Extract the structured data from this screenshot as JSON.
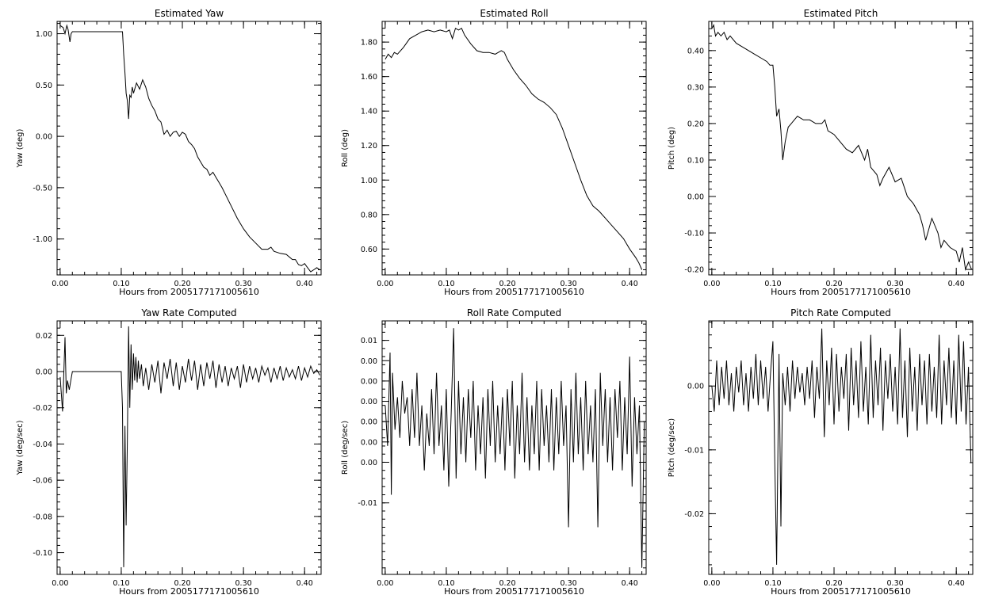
{
  "chart_data": [
    {
      "type": "line",
      "title": "Estimated Yaw",
      "xlabel": "Hours from 2005177171005610",
      "ylabel": "Yaw (deg)",
      "xlim": [
        -0.005,
        0.427
      ],
      "ylim": [
        -1.35,
        1.12
      ],
      "xticks": [
        0.0,
        0.1,
        0.2,
        0.3,
        0.4
      ],
      "xtick_labels": [
        "0.00",
        "0.10",
        "0.20",
        "0.30",
        "0.40"
      ],
      "yticks": [
        -1.0,
        -0.5,
        0.0,
        0.5,
        1.0
      ],
      "ytick_labels": [
        "-1.00",
        "-0.50",
        "0.00",
        "0.50",
        "1.00"
      ],
      "x": [
        0.0,
        0.005,
        0.008,
        0.011,
        0.013,
        0.016,
        0.018,
        0.02,
        0.022,
        0.05,
        0.08,
        0.102,
        0.104,
        0.106,
        0.108,
        0.11,
        0.112,
        0.114,
        0.116,
        0.118,
        0.12,
        0.125,
        0.13,
        0.135,
        0.14,
        0.145,
        0.15,
        0.155,
        0.16,
        0.165,
        0.17,
        0.175,
        0.18,
        0.185,
        0.19,
        0.195,
        0.2,
        0.205,
        0.21,
        0.215,
        0.22,
        0.225,
        0.23,
        0.235,
        0.24,
        0.245,
        0.25,
        0.255,
        0.26,
        0.265,
        0.27,
        0.28,
        0.29,
        0.3,
        0.31,
        0.32,
        0.33,
        0.34,
        0.345,
        0.35,
        0.36,
        0.37,
        0.38,
        0.385,
        0.39,
        0.395,
        0.4,
        0.405,
        0.41,
        0.415,
        0.42,
        0.425
      ],
      "y": [
        1.08,
        1.06,
        1.0,
        1.08,
        1.04,
        0.92,
        1.0,
        1.02,
        1.02,
        1.02,
        1.02,
        1.02,
        0.8,
        0.62,
        0.42,
        0.35,
        0.17,
        0.4,
        0.38,
        0.48,
        0.42,
        0.52,
        0.46,
        0.55,
        0.48,
        0.37,
        0.3,
        0.25,
        0.17,
        0.14,
        0.02,
        0.06,
        0.0,
        0.04,
        0.05,
        0.0,
        0.04,
        0.02,
        -0.05,
        -0.08,
        -0.12,
        -0.2,
        -0.25,
        -0.3,
        -0.32,
        -0.38,
        -0.35,
        -0.4,
        -0.45,
        -0.5,
        -0.56,
        -0.68,
        -0.8,
        -0.9,
        -0.98,
        -1.04,
        -1.1,
        -1.1,
        -1.08,
        -1.12,
        -1.14,
        -1.15,
        -1.2,
        -1.2,
        -1.25,
        -1.26,
        -1.24,
        -1.28,
        -1.32,
        -1.3,
        -1.28,
        -1.3
      ]
    },
    {
      "type": "line",
      "title": "Estimated Roll",
      "xlabel": "Hours from 2005177171005610",
      "ylabel": "Roll (deg)",
      "xlim": [
        -0.005,
        0.427
      ],
      "ylim": [
        0.45,
        1.92
      ],
      "xticks": [
        0.0,
        0.1,
        0.2,
        0.3,
        0.4
      ],
      "xtick_labels": [
        "0.00",
        "0.10",
        "0.20",
        "0.30",
        "0.40"
      ],
      "yticks": [
        0.6,
        0.8,
        1.0,
        1.2,
        1.4,
        1.6,
        1.8
      ],
      "ytick_labels": [
        "0.60",
        "0.80",
        "1.00",
        "1.20",
        "1.40",
        "1.60",
        "1.80"
      ],
      "x": [
        0.0,
        0.005,
        0.01,
        0.015,
        0.02,
        0.03,
        0.04,
        0.05,
        0.06,
        0.07,
        0.08,
        0.09,
        0.1,
        0.105,
        0.11,
        0.115,
        0.12,
        0.125,
        0.13,
        0.14,
        0.15,
        0.16,
        0.17,
        0.18,
        0.19,
        0.195,
        0.2,
        0.21,
        0.22,
        0.23,
        0.24,
        0.25,
        0.26,
        0.27,
        0.28,
        0.29,
        0.3,
        0.31,
        0.32,
        0.33,
        0.34,
        0.35,
        0.36,
        0.37,
        0.38,
        0.39,
        0.4,
        0.41,
        0.415,
        0.42
      ],
      "y": [
        1.7,
        1.73,
        1.71,
        1.74,
        1.73,
        1.77,
        1.82,
        1.84,
        1.86,
        1.87,
        1.86,
        1.87,
        1.86,
        1.87,
        1.82,
        1.88,
        1.87,
        1.88,
        1.84,
        1.79,
        1.75,
        1.74,
        1.74,
        1.73,
        1.75,
        1.74,
        1.7,
        1.64,
        1.59,
        1.55,
        1.5,
        1.47,
        1.45,
        1.42,
        1.38,
        1.3,
        1.2,
        1.1,
        1.0,
        0.91,
        0.85,
        0.82,
        0.78,
        0.74,
        0.7,
        0.66,
        0.6,
        0.55,
        0.52,
        0.48
      ]
    },
    {
      "type": "line",
      "title": "Estimated Pitch",
      "xlabel": "Hours from 2005177171005610",
      "ylabel": "Pitch (deg)",
      "xlim": [
        -0.005,
        0.427
      ],
      "ylim": [
        -0.215,
        0.48
      ],
      "xticks": [
        0.0,
        0.1,
        0.2,
        0.3,
        0.4
      ],
      "xtick_labels": [
        "0.00",
        "0.10",
        "0.20",
        "0.30",
        "0.40"
      ],
      "yticks": [
        -0.2,
        -0.1,
        0.0,
        0.1,
        0.2,
        0.3,
        0.4
      ],
      "ytick_labels": [
        "-0.20",
        "-0.10",
        "0.00",
        "0.10",
        "0.20",
        "0.30",
        "0.40"
      ],
      "x": [
        0.0,
        0.003,
        0.006,
        0.01,
        0.015,
        0.02,
        0.025,
        0.03,
        0.04,
        0.05,
        0.06,
        0.07,
        0.08,
        0.09,
        0.095,
        0.1,
        0.103,
        0.106,
        0.11,
        0.113,
        0.116,
        0.12,
        0.125,
        0.13,
        0.14,
        0.15,
        0.16,
        0.17,
        0.18,
        0.185,
        0.19,
        0.2,
        0.21,
        0.22,
        0.23,
        0.24,
        0.25,
        0.255,
        0.26,
        0.27,
        0.275,
        0.28,
        0.29,
        0.3,
        0.31,
        0.32,
        0.33,
        0.34,
        0.345,
        0.35,
        0.36,
        0.37,
        0.375,
        0.38,
        0.39,
        0.4,
        0.405,
        0.41,
        0.415,
        0.42,
        0.425
      ],
      "y": [
        0.46,
        0.47,
        0.44,
        0.45,
        0.44,
        0.45,
        0.43,
        0.44,
        0.42,
        0.41,
        0.4,
        0.39,
        0.38,
        0.37,
        0.36,
        0.36,
        0.3,
        0.22,
        0.24,
        0.18,
        0.1,
        0.15,
        0.19,
        0.2,
        0.22,
        0.21,
        0.21,
        0.2,
        0.2,
        0.21,
        0.18,
        0.17,
        0.15,
        0.13,
        0.12,
        0.14,
        0.1,
        0.13,
        0.08,
        0.06,
        0.03,
        0.05,
        0.08,
        0.04,
        0.05,
        0.0,
        -0.02,
        -0.05,
        -0.08,
        -0.12,
        -0.06,
        -0.1,
        -0.14,
        -0.12,
        -0.14,
        -0.15,
        -0.18,
        -0.14,
        -0.2,
        -0.18,
        -0.2
      ]
    },
    {
      "type": "line",
      "title": "Yaw Rate Computed",
      "xlabel": "Hours from 2005177171005610",
      "ylabel": "Yaw (deg/sec)",
      "xlim": [
        -0.005,
        0.427
      ],
      "ylim": [
        -0.112,
        0.028
      ],
      "xticks": [
        0.0,
        0.1,
        0.2,
        0.3,
        0.4
      ],
      "xtick_labels": [
        "0.00",
        "0.10",
        "0.20",
        "0.30",
        "0.40"
      ],
      "yticks": [
        -0.1,
        -0.08,
        -0.06,
        -0.04,
        -0.02,
        0.0,
        0.02
      ],
      "ytick_labels": [
        "-0.10",
        "-0.08",
        "-0.06",
        "-0.04",
        "-0.02",
        "0.00",
        "0.02"
      ],
      "x": [
        0.0,
        0.004,
        0.008,
        0.01,
        0.012,
        0.015,
        0.018,
        0.02,
        0.1,
        0.102,
        0.104,
        0.106,
        0.108,
        0.11,
        0.112,
        0.114,
        0.116,
        0.118,
        0.12,
        0.122,
        0.124,
        0.126,
        0.128,
        0.13,
        0.133,
        0.136,
        0.14,
        0.145,
        0.15,
        0.155,
        0.16,
        0.165,
        0.17,
        0.175,
        0.18,
        0.185,
        0.19,
        0.195,
        0.2,
        0.205,
        0.21,
        0.215,
        0.22,
        0.225,
        0.23,
        0.235,
        0.24,
        0.245,
        0.25,
        0.255,
        0.26,
        0.265,
        0.27,
        0.275,
        0.28,
        0.285,
        0.29,
        0.295,
        0.3,
        0.305,
        0.31,
        0.315,
        0.32,
        0.325,
        0.33,
        0.335,
        0.34,
        0.345,
        0.35,
        0.355,
        0.36,
        0.365,
        0.37,
        0.375,
        0.38,
        0.385,
        0.39,
        0.395,
        0.4,
        0.405,
        0.41,
        0.415,
        0.42,
        0.425
      ],
      "y": [
        -0.003,
        -0.022,
        0.019,
        -0.012,
        -0.005,
        -0.01,
        -0.004,
        0.0,
        0.0,
        -0.02,
        -0.108,
        -0.03,
        -0.085,
        -0.04,
        0.025,
        -0.02,
        0.015,
        -0.01,
        0.01,
        -0.005,
        0.008,
        -0.006,
        0.006,
        -0.004,
        0.004,
        -0.008,
        0.002,
        -0.01,
        0.004,
        -0.006,
        0.006,
        -0.012,
        0.005,
        -0.004,
        0.007,
        -0.008,
        0.005,
        -0.01,
        0.003,
        -0.006,
        0.007,
        -0.005,
        0.006,
        -0.01,
        0.004,
        -0.008,
        0.005,
        -0.004,
        0.006,
        -0.009,
        0.004,
        -0.006,
        0.003,
        -0.008,
        0.002,
        -0.004,
        0.003,
        -0.009,
        0.004,
        -0.006,
        0.003,
        -0.004,
        0.002,
        -0.006,
        0.003,
        -0.002,
        0.002,
        -0.006,
        0.002,
        -0.004,
        0.003,
        -0.005,
        0.002,
        -0.003,
        0.001,
        -0.004,
        0.003,
        -0.005,
        0.002,
        -0.003,
        0.003,
        -0.001,
        0.001,
        -0.002
      ]
    },
    {
      "type": "line",
      "title": "Roll Rate Computed",
      "xlabel": "Hours from 2005177171005610",
      "ylabel": "Roll (deg/sec)",
      "xlim": [
        -0.005,
        0.427
      ],
      "ylim": [
        -0.0188,
        0.0124
      ],
      "xticks": [
        0.0,
        0.1,
        0.2,
        0.3,
        0.4
      ],
      "xtick_labels": [
        "0.00",
        "0.10",
        "0.20",
        "0.30",
        "0.40"
      ],
      "yticks": [
        -0.01,
        -0.005,
        0.0,
        0.005,
        0.01
      ],
      "ytick_labels": [
        "-0.01",
        "0.00",
        "0.00",
        "0.00",
        "0.01"
      ],
      "extra_y_labels": [
        {
          "y": 0.0075,
          "label": "0.00"
        },
        {
          "y": 0.0025,
          "label": "0.00"
        },
        {
          "y": -0.0025,
          "label": "0.00"
        }
      ],
      "x": [
        0.0,
        0.004,
        0.008,
        0.01,
        0.012,
        0.016,
        0.02,
        0.024,
        0.028,
        0.032,
        0.036,
        0.04,
        0.044,
        0.048,
        0.052,
        0.056,
        0.06,
        0.064,
        0.068,
        0.072,
        0.076,
        0.08,
        0.084,
        0.088,
        0.092,
        0.096,
        0.1,
        0.104,
        0.108,
        0.112,
        0.116,
        0.12,
        0.124,
        0.128,
        0.132,
        0.136,
        0.14,
        0.144,
        0.148,
        0.152,
        0.156,
        0.16,
        0.164,
        0.168,
        0.172,
        0.176,
        0.18,
        0.184,
        0.188,
        0.192,
        0.196,
        0.2,
        0.204,
        0.208,
        0.212,
        0.216,
        0.22,
        0.224,
        0.228,
        0.232,
        0.236,
        0.24,
        0.244,
        0.248,
        0.252,
        0.256,
        0.26,
        0.264,
        0.268,
        0.272,
        0.276,
        0.28,
        0.284,
        0.288,
        0.292,
        0.296,
        0.3,
        0.304,
        0.308,
        0.312,
        0.316,
        0.32,
        0.324,
        0.328,
        0.332,
        0.336,
        0.34,
        0.344,
        0.348,
        0.352,
        0.356,
        0.36,
        0.364,
        0.368,
        0.372,
        0.376,
        0.38,
        0.384,
        0.388,
        0.392,
        0.396,
        0.4,
        0.404,
        0.408,
        0.412,
        0.416,
        0.42,
        0.424
      ],
      "y": [
        0.002,
        -0.003,
        0.0085,
        -0.009,
        0.006,
        -0.001,
        0.003,
        -0.002,
        0.005,
        0.001,
        0.003,
        -0.003,
        0.004,
        -0.002,
        0.006,
        -0.003,
        0.002,
        -0.006,
        0.001,
        -0.003,
        0.004,
        -0.004,
        0.006,
        -0.003,
        0.002,
        -0.006,
        0.004,
        -0.008,
        0.001,
        0.0115,
        -0.007,
        0.005,
        -0.004,
        0.003,
        -0.005,
        0.004,
        -0.002,
        0.005,
        -0.006,
        0.002,
        -0.004,
        0.003,
        -0.007,
        0.004,
        -0.003,
        0.005,
        -0.005,
        0.002,
        -0.004,
        0.003,
        -0.006,
        0.004,
        -0.003,
        0.005,
        -0.007,
        0.002,
        -0.004,
        0.006,
        -0.005,
        0.003,
        -0.006,
        0.002,
        -0.004,
        0.005,
        -0.006,
        0.004,
        -0.003,
        0.002,
        -0.005,
        0.004,
        -0.006,
        0.003,
        -0.004,
        0.005,
        -0.003,
        0.002,
        -0.013,
        0.004,
        -0.005,
        0.006,
        -0.004,
        0.003,
        -0.006,
        0.005,
        -0.004,
        0.002,
        -0.005,
        0.004,
        -0.013,
        0.006,
        -0.003,
        0.004,
        -0.005,
        0.003,
        -0.006,
        0.004,
        -0.002,
        0.005,
        -0.006,
        0.003,
        -0.004,
        0.008,
        -0.008,
        0.003,
        -0.004,
        0.002,
        -0.018,
        0.0
      ]
    },
    {
      "type": "line",
      "title": "Pitch Rate Computed",
      "xlabel": "Hours from 2005177171005610",
      "ylabel": "Pitch (deg/sec)",
      "xlim": [
        -0.005,
        0.427
      ],
      "ylim": [
        -0.0295,
        0.0102
      ],
      "xticks": [
        0.0,
        0.1,
        0.2,
        0.3,
        0.4
      ],
      "xtick_labels": [
        "0.00",
        "0.10",
        "0.20",
        "0.30",
        "0.40"
      ],
      "yticks": [
        -0.02,
        -0.01,
        0.0
      ],
      "ytick_labels": [
        "-0.02",
        "-0.01",
        "0.00"
      ],
      "x": [
        0.0,
        0.004,
        0.008,
        0.012,
        0.016,
        0.02,
        0.024,
        0.028,
        0.032,
        0.036,
        0.04,
        0.044,
        0.048,
        0.052,
        0.056,
        0.06,
        0.064,
        0.068,
        0.072,
        0.076,
        0.08,
        0.084,
        0.088,
        0.092,
        0.096,
        0.1,
        0.103,
        0.106,
        0.11,
        0.113,
        0.116,
        0.12,
        0.124,
        0.128,
        0.132,
        0.136,
        0.14,
        0.144,
        0.148,
        0.152,
        0.156,
        0.16,
        0.164,
        0.168,
        0.172,
        0.176,
        0.18,
        0.184,
        0.188,
        0.192,
        0.196,
        0.2,
        0.204,
        0.208,
        0.212,
        0.216,
        0.22,
        0.224,
        0.228,
        0.232,
        0.236,
        0.24,
        0.244,
        0.248,
        0.252,
        0.256,
        0.26,
        0.264,
        0.268,
        0.272,
        0.276,
        0.28,
        0.284,
        0.288,
        0.292,
        0.296,
        0.3,
        0.304,
        0.308,
        0.312,
        0.316,
        0.32,
        0.324,
        0.328,
        0.332,
        0.336,
        0.34,
        0.344,
        0.348,
        0.352,
        0.356,
        0.36,
        0.364,
        0.368,
        0.372,
        0.376,
        0.38,
        0.384,
        0.388,
        0.392,
        0.396,
        0.4,
        0.404,
        0.408,
        0.412,
        0.416,
        0.42,
        0.424
      ],
      "y": [
        0.0,
        -0.004,
        0.004,
        -0.003,
        0.003,
        -0.002,
        0.004,
        -0.003,
        0.002,
        -0.004,
        0.003,
        -0.001,
        0.004,
        -0.003,
        0.002,
        -0.004,
        0.003,
        -0.002,
        0.005,
        -0.003,
        0.004,
        -0.002,
        0.003,
        -0.004,
        0.002,
        0.007,
        -0.012,
        -0.028,
        0.005,
        -0.022,
        0.002,
        -0.003,
        0.003,
        -0.004,
        0.004,
        -0.002,
        0.003,
        -0.001,
        0.002,
        -0.003,
        0.003,
        -0.002,
        0.004,
        -0.005,
        0.003,
        -0.002,
        0.009,
        -0.008,
        0.004,
        -0.003,
        0.006,
        -0.006,
        0.005,
        -0.004,
        0.003,
        -0.002,
        0.005,
        -0.007,
        0.006,
        -0.003,
        0.004,
        -0.005,
        0.007,
        -0.004,
        0.003,
        -0.006,
        0.008,
        -0.005,
        0.004,
        -0.003,
        0.006,
        -0.007,
        0.004,
        -0.002,
        0.005,
        -0.004,
        0.003,
        -0.006,
        0.009,
        -0.005,
        0.004,
        -0.008,
        0.006,
        -0.004,
        0.003,
        -0.007,
        0.005,
        -0.003,
        0.004,
        -0.006,
        0.005,
        -0.004,
        0.003,
        -0.005,
        0.008,
        -0.006,
        0.004,
        -0.003,
        0.006,
        -0.005,
        0.004,
        -0.006,
        0.008,
        -0.004,
        0.007,
        -0.006,
        0.003,
        -0.012
      ]
    }
  ]
}
